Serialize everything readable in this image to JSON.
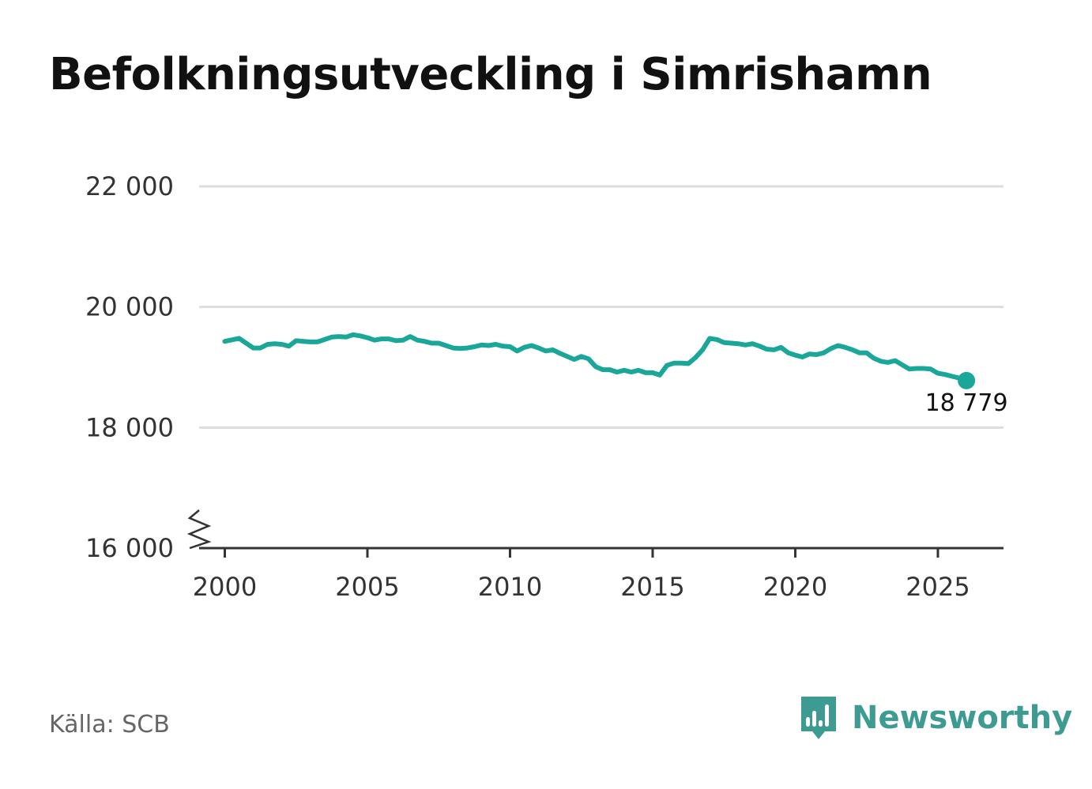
{
  "title": "Befolkningsutveckling i Simrishamn",
  "source": "Källa: SCB",
  "brand": {
    "name": "Newsworthy",
    "icon": "newsworthy-logo-icon",
    "color": "#3d9b92"
  },
  "colors": {
    "line": "#1aa79a",
    "grid": "#dddddd",
    "axis": "#333333"
  },
  "chart_data": {
    "type": "line",
    "title": "Befolkningsutveckling i Simrishamn",
    "xlabel": "",
    "ylabel": "",
    "xlim": [
      1999.1,
      2027.3
    ],
    "ylim": [
      16000,
      22000
    ],
    "axis_break": true,
    "grid": true,
    "x_ticks": [
      2000,
      2005,
      2010,
      2015,
      2020,
      2025
    ],
    "x_tick_labels": [
      "2000",
      "2005",
      "2010",
      "2015",
      "2020",
      "2025"
    ],
    "y_ticks": [
      16000,
      18000,
      20000,
      22000
    ],
    "y_tick_labels": [
      "16 000",
      "18 000",
      "20 000",
      "22 000"
    ],
    "end_label": "18 779",
    "series": [
      {
        "name": "Simrishamn",
        "x": [
          2000.0,
          2000.5,
          2001.0,
          2001.25,
          2001.5,
          2001.75,
          2002.0,
          2002.25,
          2002.5,
          2002.75,
          2003.0,
          2003.25,
          2003.5,
          2003.75,
          2004.0,
          2004.25,
          2004.5,
          2004.75,
          2005.0,
          2005.25,
          2005.5,
          2005.75,
          2006.0,
          2006.25,
          2006.5,
          2006.75,
          2007.0,
          2007.25,
          2007.5,
          2007.75,
          2008.0,
          2008.25,
          2008.5,
          2008.75,
          2009.0,
          2009.25,
          2009.5,
          2009.75,
          2010.0,
          2010.25,
          2010.5,
          2010.75,
          2011.0,
          2011.25,
          2011.5,
          2011.75,
          2012.0,
          2012.25,
          2012.5,
          2012.75,
          2013.0,
          2013.25,
          2013.5,
          2013.75,
          2014.0,
          2014.25,
          2014.5,
          2014.75,
          2015.0,
          2015.25,
          2015.5,
          2015.75,
          2016.0,
          2016.25,
          2016.5,
          2016.75,
          2017.0,
          2017.25,
          2017.5,
          2017.75,
          2018.0,
          2018.25,
          2018.5,
          2018.75,
          2019.0,
          2019.25,
          2019.5,
          2019.75,
          2020.0,
          2020.25,
          2020.5,
          2020.75,
          2021.0,
          2021.25,
          2021.5,
          2021.75,
          2022.0,
          2022.25,
          2022.5,
          2022.75,
          2023.0,
          2023.25,
          2023.5,
          2023.75,
          2024.0,
          2024.25,
          2024.5,
          2024.75,
          2025.0,
          2025.25,
          2025.5,
          2025.75,
          2026.0
        ],
        "values": [
          19430,
          19480,
          19320,
          19320,
          19380,
          19390,
          19380,
          19350,
          19440,
          19430,
          19420,
          19420,
          19460,
          19500,
          19510,
          19500,
          19540,
          19520,
          19490,
          19450,
          19470,
          19470,
          19440,
          19450,
          19510,
          19450,
          19430,
          19400,
          19400,
          19360,
          19320,
          19310,
          19320,
          19340,
          19370,
          19360,
          19380,
          19350,
          19340,
          19270,
          19330,
          19360,
          19320,
          19270,
          19290,
          19230,
          19180,
          19130,
          19180,
          19140,
          19010,
          18960,
          18960,
          18920,
          18950,
          18920,
          18950,
          18910,
          18910,
          18870,
          19030,
          19070,
          19070,
          19060,
          19160,
          19290,
          19480,
          19460,
          19410,
          19400,
          19390,
          19370,
          19390,
          19350,
          19300,
          19290,
          19330,
          19240,
          19200,
          19170,
          19220,
          19210,
          19240,
          19310,
          19360,
          19330,
          19290,
          19240,
          19240,
          19150,
          19100,
          19080,
          19110,
          19040,
          18970,
          18980,
          18980,
          18970,
          18900,
          18880,
          18850,
          18820,
          18779
        ]
      }
    ]
  }
}
